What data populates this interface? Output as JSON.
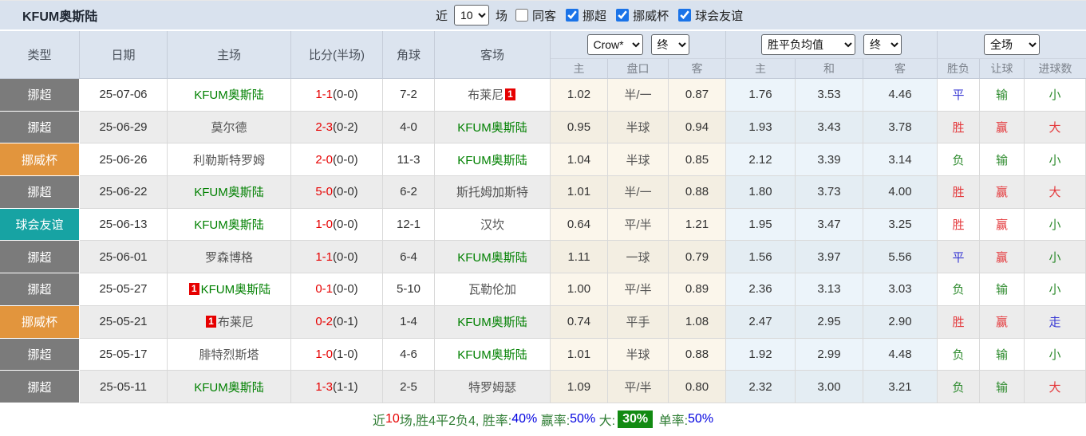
{
  "title": "KFUM奥斯陆",
  "filter_bar": {
    "recent_label": "近",
    "recent_value": "10",
    "games_label": "场",
    "same_away_checked": false,
    "same_away_label": "同客",
    "leagues": [
      {
        "label": "挪超",
        "checked": true
      },
      {
        "label": "挪威杯",
        "checked": true
      },
      {
        "label": "球会友谊",
        "checked": true
      }
    ]
  },
  "header": {
    "left_cols": [
      "类型",
      "日期",
      "主场",
      "比分(半场)",
      "角球",
      "客场"
    ],
    "odds_provider_select": "Crow*",
    "odds_stage_select": "终",
    "avg_select": "胜平负均值",
    "avg_stage_select": "终",
    "scope_select": "全场",
    "sub_cols": [
      "主",
      "盘口",
      "客",
      "主",
      "和",
      "客",
      "胜负",
      "让球",
      "进球数"
    ]
  },
  "colors": {
    "type": {
      "挪超": "#7b7b7b",
      "挪威杯": "#e2953d",
      "球会友谊": "#17a3a3"
    },
    "team_self": "#008000",
    "score_red": "#e60000",
    "result_red": "#e4393c",
    "result_green": "#2e8b2e",
    "result_blue": "#3a3ad4",
    "footer_highlight_bg": "#128a12"
  },
  "rows": [
    {
      "type": "挪超",
      "date": "25-07-06",
      "home": {
        "name": "KFUM奥斯陆",
        "self": true,
        "badge": null,
        "badge_pos": null
      },
      "away": {
        "name": "布莱尼",
        "self": false,
        "badge": "1",
        "badge_pos": "after"
      },
      "score": "1-1",
      "half": "(0-0)",
      "corner": "7-2",
      "odds": [
        "1.02",
        "半/一",
        "0.87"
      ],
      "avg": [
        "1.76",
        "3.53",
        "4.46"
      ],
      "results": [
        {
          "t": "平",
          "c": "blue"
        },
        {
          "t": "输",
          "c": "green"
        },
        {
          "t": "小",
          "c": "green"
        }
      ]
    },
    {
      "type": "挪超",
      "date": "25-06-29",
      "home": {
        "name": "莫尔德",
        "self": false,
        "badge": null,
        "badge_pos": null
      },
      "away": {
        "name": "KFUM奥斯陆",
        "self": true,
        "badge": null,
        "badge_pos": null
      },
      "score": "2-3",
      "half": "(0-2)",
      "corner": "4-0",
      "odds": [
        "0.95",
        "半球",
        "0.94"
      ],
      "avg": [
        "1.93",
        "3.43",
        "3.78"
      ],
      "results": [
        {
          "t": "胜",
          "c": "red"
        },
        {
          "t": "赢",
          "c": "red"
        },
        {
          "t": "大",
          "c": "red"
        }
      ]
    },
    {
      "type": "挪威杯",
      "date": "25-06-26",
      "home": {
        "name": "利勒斯特罗姆",
        "self": false,
        "badge": null,
        "badge_pos": null
      },
      "away": {
        "name": "KFUM奥斯陆",
        "self": true,
        "badge": null,
        "badge_pos": null
      },
      "score": "2-0",
      "half": "(0-0)",
      "corner": "11-3",
      "odds": [
        "1.04",
        "半球",
        "0.85"
      ],
      "avg": [
        "2.12",
        "3.39",
        "3.14"
      ],
      "results": [
        {
          "t": "负",
          "c": "green"
        },
        {
          "t": "输",
          "c": "green"
        },
        {
          "t": "小",
          "c": "green"
        }
      ]
    },
    {
      "type": "挪超",
      "date": "25-06-22",
      "home": {
        "name": "KFUM奥斯陆",
        "self": true,
        "badge": null,
        "badge_pos": null
      },
      "away": {
        "name": "斯托姆加斯特",
        "self": false,
        "badge": null,
        "badge_pos": null
      },
      "score": "5-0",
      "half": "(0-0)",
      "corner": "6-2",
      "odds": [
        "1.01",
        "半/一",
        "0.88"
      ],
      "avg": [
        "1.80",
        "3.73",
        "4.00"
      ],
      "results": [
        {
          "t": "胜",
          "c": "red"
        },
        {
          "t": "赢",
          "c": "red"
        },
        {
          "t": "大",
          "c": "red"
        }
      ]
    },
    {
      "type": "球会友谊",
      "date": "25-06-13",
      "home": {
        "name": "KFUM奥斯陆",
        "self": true,
        "badge": null,
        "badge_pos": null
      },
      "away": {
        "name": "汉坎",
        "self": false,
        "badge": null,
        "badge_pos": null
      },
      "score": "1-0",
      "half": "(0-0)",
      "corner": "12-1",
      "odds": [
        "0.64",
        "平/半",
        "1.21"
      ],
      "avg": [
        "1.95",
        "3.47",
        "3.25"
      ],
      "results": [
        {
          "t": "胜",
          "c": "red"
        },
        {
          "t": "赢",
          "c": "red"
        },
        {
          "t": "小",
          "c": "green"
        }
      ]
    },
    {
      "type": "挪超",
      "date": "25-06-01",
      "home": {
        "name": "罗森博格",
        "self": false,
        "badge": null,
        "badge_pos": null
      },
      "away": {
        "name": "KFUM奥斯陆",
        "self": true,
        "badge": null,
        "badge_pos": null
      },
      "score": "1-1",
      "half": "(0-0)",
      "corner": "6-4",
      "odds": [
        "1.11",
        "一球",
        "0.79"
      ],
      "avg": [
        "1.56",
        "3.97",
        "5.56"
      ],
      "results": [
        {
          "t": "平",
          "c": "blue"
        },
        {
          "t": "赢",
          "c": "red"
        },
        {
          "t": "小",
          "c": "green"
        }
      ]
    },
    {
      "type": "挪超",
      "date": "25-05-27",
      "home": {
        "name": "KFUM奥斯陆",
        "self": true,
        "badge": "1",
        "badge_pos": "before"
      },
      "away": {
        "name": "瓦勒伦加",
        "self": false,
        "badge": null,
        "badge_pos": null
      },
      "score": "0-1",
      "half": "(0-0)",
      "corner": "5-10",
      "odds": [
        "1.00",
        "平/半",
        "0.89"
      ],
      "avg": [
        "2.36",
        "3.13",
        "3.03"
      ],
      "results": [
        {
          "t": "负",
          "c": "green"
        },
        {
          "t": "输",
          "c": "green"
        },
        {
          "t": "小",
          "c": "green"
        }
      ]
    },
    {
      "type": "挪威杯",
      "date": "25-05-21",
      "home": {
        "name": "布莱尼",
        "self": false,
        "badge": "1",
        "badge_pos": "before"
      },
      "away": {
        "name": "KFUM奥斯陆",
        "self": true,
        "badge": null,
        "badge_pos": null
      },
      "score": "0-2",
      "half": "(0-1)",
      "corner": "1-4",
      "odds": [
        "0.74",
        "平手",
        "1.08"
      ],
      "avg": [
        "2.47",
        "2.95",
        "2.90"
      ],
      "results": [
        {
          "t": "胜",
          "c": "red"
        },
        {
          "t": "赢",
          "c": "red"
        },
        {
          "t": "走",
          "c": "blue"
        }
      ]
    },
    {
      "type": "挪超",
      "date": "25-05-17",
      "home": {
        "name": "腓特烈斯塔",
        "self": false,
        "badge": null,
        "badge_pos": null
      },
      "away": {
        "name": "KFUM奥斯陆",
        "self": true,
        "badge": null,
        "badge_pos": null
      },
      "score": "1-0",
      "half": "(1-0)",
      "corner": "4-6",
      "odds": [
        "1.01",
        "半球",
        "0.88"
      ],
      "avg": [
        "1.92",
        "2.99",
        "4.48"
      ],
      "results": [
        {
          "t": "负",
          "c": "green"
        },
        {
          "t": "输",
          "c": "green"
        },
        {
          "t": "小",
          "c": "green"
        }
      ]
    },
    {
      "type": "挪超",
      "date": "25-05-11",
      "home": {
        "name": "KFUM奥斯陆",
        "self": true,
        "badge": null,
        "badge_pos": null
      },
      "away": {
        "name": "特罗姆瑟",
        "self": false,
        "badge": null,
        "badge_pos": null
      },
      "score": "1-3",
      "half": "(1-1)",
      "corner": "2-5",
      "odds": [
        "1.09",
        "平/半",
        "0.80"
      ],
      "avg": [
        "2.32",
        "3.00",
        "3.21"
      ],
      "results": [
        {
          "t": "负",
          "c": "green"
        },
        {
          "t": "输",
          "c": "green"
        },
        {
          "t": "大",
          "c": "red"
        }
      ]
    }
  ],
  "footer": {
    "seg_recent": "近",
    "seg_count": "10",
    "seg_record": "场,胜4平2负4, 胜率:",
    "seg_win_rate": "40%",
    "seg_handicap_label": " 赢率:",
    "seg_handicap_rate": "50%",
    "seg_big_label": " 大:",
    "seg_big_rate": "30%",
    "seg_odd_label": " 单率:",
    "seg_odd_rate": "50%"
  }
}
